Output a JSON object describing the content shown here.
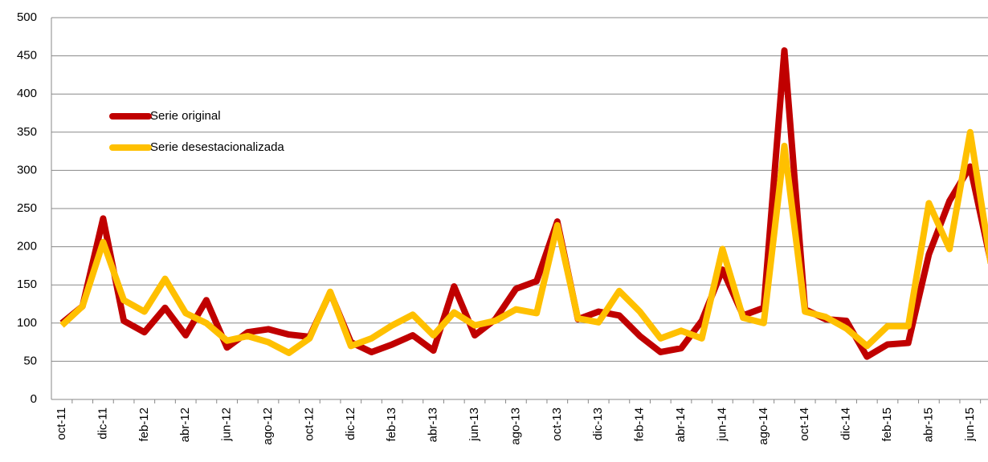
{
  "chart_data": {
    "type": "line",
    "categories": [
      "oct-11",
      null,
      "dic-11",
      null,
      "feb-12",
      null,
      "abr-12",
      null,
      "jun-12",
      null,
      "ago-12",
      null,
      "oct-12",
      null,
      "dic-12",
      null,
      "feb-13",
      null,
      "abr-13",
      null,
      "jun-13",
      null,
      "ago-13",
      null,
      "oct-13",
      null,
      "dic-13",
      null,
      "feb-14",
      null,
      "abr-14",
      null,
      "jun-14",
      null,
      "ago-14",
      null,
      "oct-14",
      null,
      "dic-14",
      null,
      "feb-15",
      null,
      "abr-15",
      null,
      "jun-15",
      null
    ],
    "series": [
      {
        "name": "Serie original",
        "color": "#c00000",
        "values": [
          100,
          122,
          237,
          103,
          88,
          120,
          84,
          130,
          68,
          88,
          92,
          85,
          82,
          140,
          75,
          62,
          72,
          84,
          64,
          148,
          84,
          105,
          145,
          155,
          233,
          105,
          115,
          110,
          83,
          62,
          67,
          103,
          170,
          110,
          120,
          457,
          118,
          105,
          103,
          56,
          72,
          74,
          190,
          260,
          305,
          180
        ]
      },
      {
        "name": "Serie desestacionalizada",
        "color": "#ffc000",
        "values": [
          97,
          122,
          206,
          130,
          115,
          158,
          113,
          100,
          77,
          83,
          75,
          61,
          80,
          141,
          70,
          80,
          97,
          111,
          84,
          114,
          97,
          103,
          118,
          113,
          228,
          106,
          101,
          142,
          115,
          80,
          90,
          80,
          197,
          107,
          100,
          332,
          115,
          108,
          93,
          70,
          96,
          96,
          257,
          197,
          350,
          178
        ]
      }
    ],
    "ylim": [
      0,
      500
    ],
    "yticks": [
      0,
      50,
      100,
      150,
      200,
      250,
      300,
      350,
      400,
      450,
      500
    ],
    "grid": true,
    "legend": "upper-left"
  }
}
